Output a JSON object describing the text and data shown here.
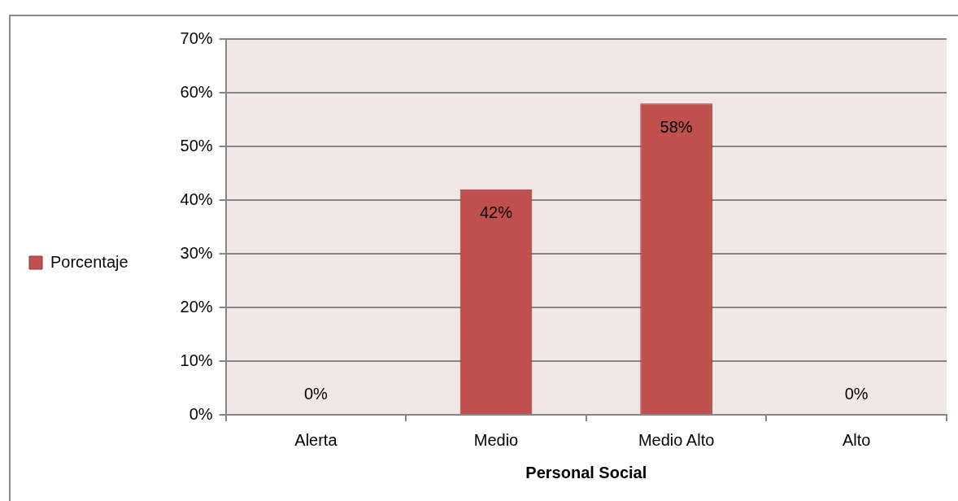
{
  "chart_data": {
    "type": "bar",
    "xlabel": "Personal Social",
    "categories": [
      "Alerta",
      "Medio",
      "Medio Alto",
      "Alto"
    ],
    "series": [
      {
        "name": "Porcentaje",
        "color": "#c0504d",
        "values": [
          0,
          42,
          58,
          0
        ],
        "value_labels": [
          "0%",
          "42%",
          "58%",
          "0%"
        ]
      }
    ],
    "ylim": [
      0,
      70
    ],
    "yticks": [
      {
        "value": 0,
        "label": "0%"
      },
      {
        "value": 10,
        "label": "10%"
      },
      {
        "value": 20,
        "label": "20%"
      },
      {
        "value": 30,
        "label": "30%"
      },
      {
        "value": 40,
        "label": "40%"
      },
      {
        "value": 50,
        "label": "50%"
      },
      {
        "value": 60,
        "label": "60%"
      },
      {
        "value": 70,
        "label": "70%"
      }
    ],
    "grid": "y",
    "legend": "left"
  }
}
